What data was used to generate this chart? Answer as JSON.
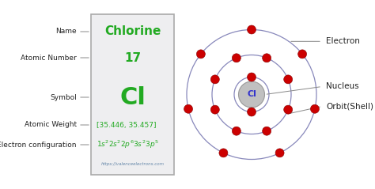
{
  "bg_color": "#ffffff",
  "box_color": "#eeeef0",
  "box_border_color": "#aaaaaa",
  "element_name": "Chlorine",
  "atomic_number": "17",
  "symbol": "Cl",
  "atomic_weight": "[35.446, 35.457]",
  "website": "https://valenceelectrons.com",
  "label_color": "#222222",
  "green_color": "#22aa22",
  "nucleus_label_color": "#3333cc",
  "electron_color": "#cc0000",
  "orbit_color": "#8888bb",
  "left_labels": [
    "Name",
    "Atomic Number",
    "Symbol",
    "Atomic Weight",
    "Electron configuration"
  ],
  "right_labels": [
    "Electron",
    "Nucleus",
    "Orbit(Shell)"
  ],
  "shell1_electrons": 2,
  "shell2_electrons": 8,
  "shell3_electrons": 7
}
